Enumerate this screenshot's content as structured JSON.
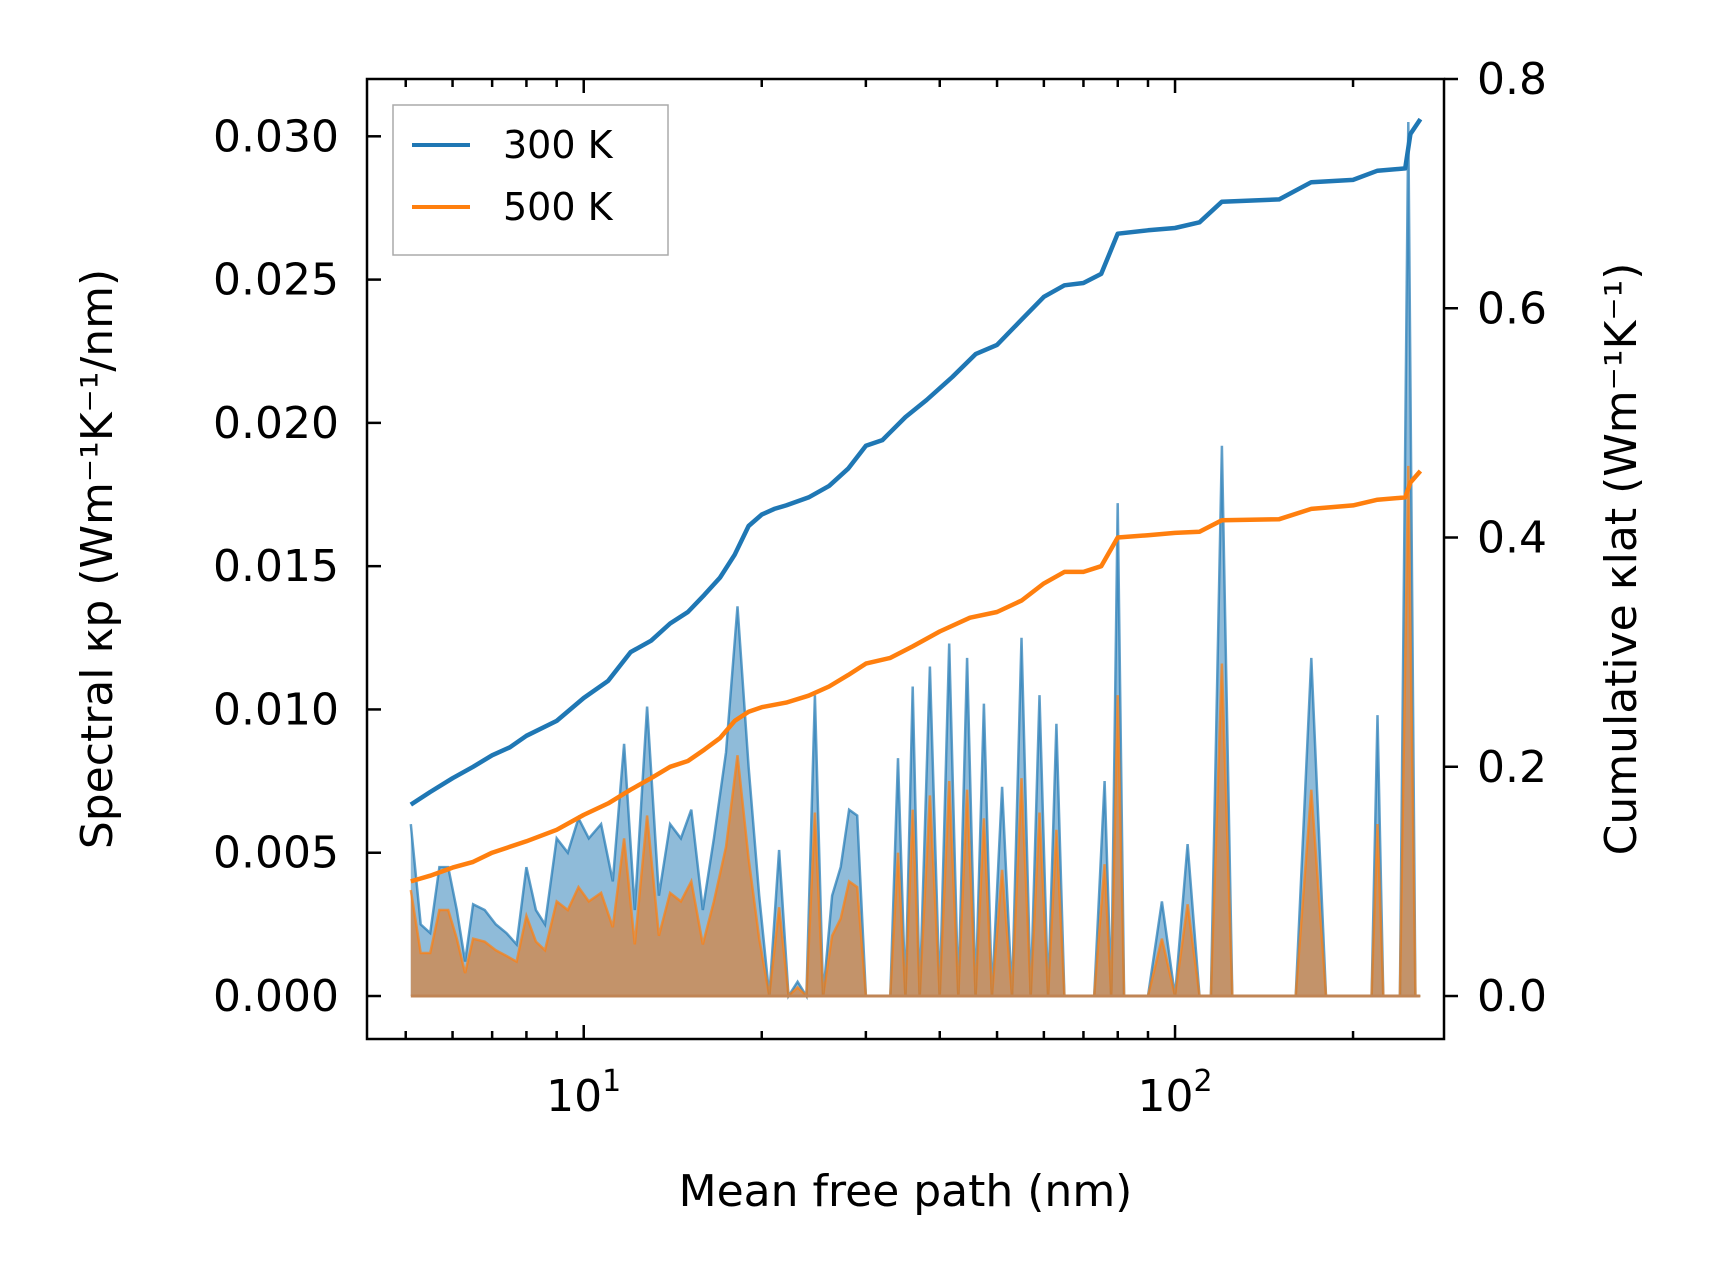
{
  "chart_data": {
    "type": "line",
    "xlabel": "Mean free path (nm)",
    "ylabel_left": "Spectral κp (Wm⁻¹K⁻¹/nm)",
    "ylabel_right": "Cumulative κlat (Wm⁻¹K⁻¹)",
    "xscale": "log",
    "xlim": [
      4.3,
      285
    ],
    "ylim_left": [
      -0.0015,
      0.032
    ],
    "ylim_right": [
      -0.0375,
      0.8
    ],
    "x_ticks": [
      {
        "value": 10,
        "base": "10",
        "exp": "1"
      },
      {
        "value": 100,
        "base": "10",
        "exp": "2"
      }
    ],
    "y_left_ticks": [
      "0.000",
      "0.005",
      "0.010",
      "0.015",
      "0.020",
      "0.025",
      "0.030"
    ],
    "y_right_ticks": [
      "0.0",
      "0.2",
      "0.4",
      "0.6",
      "0.8"
    ],
    "legend": {
      "position": "top-left",
      "entries": [
        "300 K",
        "500 K"
      ]
    },
    "colors": {
      "300K": "#1f77b4",
      "500K": "#ff7f0e",
      "fill_300K": "#1f77b4",
      "fill_500K": "#d08a4e"
    },
    "spectral_series": [
      {
        "name": "300 K",
        "points": [
          [
            5.1,
            0.006
          ],
          [
            5.3,
            0.0025
          ],
          [
            5.5,
            0.0022
          ],
          [
            5.7,
            0.0045
          ],
          [
            5.9,
            0.0045
          ],
          [
            6.1,
            0.003
          ],
          [
            6.3,
            0.0012
          ],
          [
            6.5,
            0.0032
          ],
          [
            6.8,
            0.003
          ],
          [
            7.1,
            0.0025
          ],
          [
            7.4,
            0.0022
          ],
          [
            7.7,
            0.0018
          ],
          [
            8.0,
            0.0045
          ],
          [
            8.3,
            0.003
          ],
          [
            8.6,
            0.0025
          ],
          [
            9.0,
            0.0055
          ],
          [
            9.4,
            0.005
          ],
          [
            9.8,
            0.0062
          ],
          [
            10.2,
            0.0055
          ],
          [
            10.7,
            0.006
          ],
          [
            11.2,
            0.004
          ],
          [
            11.7,
            0.0088
          ],
          [
            12.2,
            0.003
          ],
          [
            12.8,
            0.0101
          ],
          [
            13.4,
            0.0035
          ],
          [
            14.0,
            0.006
          ],
          [
            14.6,
            0.0055
          ],
          [
            15.2,
            0.0065
          ],
          [
            15.9,
            0.003
          ],
          [
            16.6,
            0.0055
          ],
          [
            17.4,
            0.0085
          ],
          [
            18.2,
            0.0136
          ],
          [
            19.0,
            0.008
          ],
          [
            19.8,
            0.0035
          ],
          [
            20.6,
            0.0
          ],
          [
            21.4,
            0.0051
          ],
          [
            22.2,
            0.0
          ],
          [
            23.0,
            0.0005
          ],
          [
            23.8,
            0.0
          ],
          [
            24.6,
            0.0105
          ],
          [
            25.4,
            0.0
          ],
          [
            26.3,
            0.0035
          ],
          [
            27.2,
            0.0045
          ],
          [
            28.1,
            0.0065
          ],
          [
            29.0,
            0.0063
          ],
          [
            30.0,
            0.0
          ],
          [
            31.0,
            0.0
          ],
          [
            32.0,
            0.0
          ],
          [
            33.0,
            0.0
          ],
          [
            34.0,
            0.0083
          ],
          [
            35.0,
            0.0
          ],
          [
            36.0,
            0.0108
          ],
          [
            37.0,
            0.0
          ],
          [
            38.5,
            0.0115
          ],
          [
            40.0,
            0.0
          ],
          [
            41.5,
            0.0123
          ],
          [
            43.0,
            0.0
          ],
          [
            44.5,
            0.0118
          ],
          [
            46.0,
            0.0
          ],
          [
            47.5,
            0.0102
          ],
          [
            49.0,
            0.0
          ],
          [
            51.0,
            0.0073
          ],
          [
            53.0,
            0.0
          ],
          [
            55.0,
            0.0125
          ],
          [
            57.0,
            0.0
          ],
          [
            59.0,
            0.0105
          ],
          [
            61.0,
            0.0
          ],
          [
            63.0,
            0.0095
          ],
          [
            65.0,
            0.0
          ],
          [
            67.0,
            0.0
          ],
          [
            70.0,
            0.0
          ],
          [
            73.0,
            0.0
          ],
          [
            76.0,
            0.0075
          ],
          [
            78.0,
            0.0
          ],
          [
            80.0,
            0.0172
          ],
          [
            82.0,
            0.0
          ],
          [
            85.0,
            0.0
          ],
          [
            90.0,
            0.0
          ],
          [
            95.0,
            0.0033
          ],
          [
            100.0,
            0.0
          ],
          [
            105.0,
            0.0053
          ],
          [
            110.0,
            0.0
          ],
          [
            115.0,
            0.0
          ],
          [
            120.0,
            0.0192
          ],
          [
            125.0,
            0.0
          ],
          [
            140.0,
            0.0
          ],
          [
            160.0,
            0.0
          ],
          [
            170.0,
            0.0118
          ],
          [
            180.0,
            0.0
          ],
          [
            200.0,
            0.0
          ],
          [
            215.0,
            0.0
          ],
          [
            220.0,
            0.0098
          ],
          [
            225.0,
            0.0
          ],
          [
            240.0,
            0.0
          ],
          [
            248.0,
            0.0305
          ],
          [
            255.0,
            0.0
          ],
          [
            260.0,
            0.0
          ]
        ]
      },
      {
        "name": "500 K",
        "points": [
          [
            5.1,
            0.0037
          ],
          [
            5.3,
            0.0015
          ],
          [
            5.5,
            0.0015
          ],
          [
            5.7,
            0.003
          ],
          [
            5.9,
            0.003
          ],
          [
            6.1,
            0.002
          ],
          [
            6.3,
            0.0008
          ],
          [
            6.5,
            0.002
          ],
          [
            6.8,
            0.0019
          ],
          [
            7.1,
            0.0016
          ],
          [
            7.4,
            0.0014
          ],
          [
            7.7,
            0.0012
          ],
          [
            8.0,
            0.0028
          ],
          [
            8.3,
            0.0019
          ],
          [
            8.6,
            0.0016
          ],
          [
            9.0,
            0.0033
          ],
          [
            9.4,
            0.003
          ],
          [
            9.8,
            0.0038
          ],
          [
            10.2,
            0.0033
          ],
          [
            10.7,
            0.0036
          ],
          [
            11.2,
            0.0024
          ],
          [
            11.7,
            0.0055
          ],
          [
            12.2,
            0.0018
          ],
          [
            12.8,
            0.0063
          ],
          [
            13.4,
            0.0021
          ],
          [
            14.0,
            0.0036
          ],
          [
            14.6,
            0.0033
          ],
          [
            15.2,
            0.004
          ],
          [
            15.9,
            0.0018
          ],
          [
            16.6,
            0.0033
          ],
          [
            17.4,
            0.0052
          ],
          [
            18.2,
            0.0084
          ],
          [
            19.0,
            0.0048
          ],
          [
            19.8,
            0.002
          ],
          [
            20.6,
            0.0
          ],
          [
            21.4,
            0.0031
          ],
          [
            22.2,
            0.0
          ],
          [
            23.0,
            0.0003
          ],
          [
            23.8,
            0.0
          ],
          [
            24.6,
            0.0064
          ],
          [
            25.4,
            0.0
          ],
          [
            26.3,
            0.0021
          ],
          [
            27.2,
            0.0027
          ],
          [
            28.1,
            0.004
          ],
          [
            29.0,
            0.0038
          ],
          [
            30.0,
            0.0
          ],
          [
            31.0,
            0.0
          ],
          [
            32.0,
            0.0
          ],
          [
            33.0,
            0.0
          ],
          [
            34.0,
            0.005
          ],
          [
            35.0,
            0.0
          ],
          [
            36.0,
            0.0065
          ],
          [
            37.0,
            0.0
          ],
          [
            38.5,
            0.007
          ],
          [
            40.0,
            0.0
          ],
          [
            41.5,
            0.0075
          ],
          [
            43.0,
            0.0
          ],
          [
            44.5,
            0.0072
          ],
          [
            46.0,
            0.0
          ],
          [
            47.5,
            0.0062
          ],
          [
            49.0,
            0.0
          ],
          [
            51.0,
            0.0044
          ],
          [
            53.0,
            0.0
          ],
          [
            55.0,
            0.0076
          ],
          [
            57.0,
            0.0
          ],
          [
            59.0,
            0.0064
          ],
          [
            61.0,
            0.0
          ],
          [
            63.0,
            0.0058
          ],
          [
            65.0,
            0.0
          ],
          [
            67.0,
            0.0
          ],
          [
            70.0,
            0.0
          ],
          [
            73.0,
            0.0
          ],
          [
            76.0,
            0.0046
          ],
          [
            78.0,
            0.0
          ],
          [
            80.0,
            0.0105
          ],
          [
            82.0,
            0.0
          ],
          [
            85.0,
            0.0
          ],
          [
            90.0,
            0.0
          ],
          [
            95.0,
            0.002
          ],
          [
            100.0,
            0.0
          ],
          [
            105.0,
            0.0032
          ],
          [
            110.0,
            0.0
          ],
          [
            115.0,
            0.0
          ],
          [
            120.0,
            0.0116
          ],
          [
            125.0,
            0.0
          ],
          [
            140.0,
            0.0
          ],
          [
            160.0,
            0.0
          ],
          [
            170.0,
            0.0072
          ],
          [
            180.0,
            0.0
          ],
          [
            200.0,
            0.0
          ],
          [
            215.0,
            0.0
          ],
          [
            220.0,
            0.006
          ],
          [
            225.0,
            0.0
          ],
          [
            240.0,
            0.0
          ],
          [
            248.0,
            0.0185
          ],
          [
            255.0,
            0.0
          ],
          [
            260.0,
            0.0
          ]
        ]
      }
    ],
    "cumulative_series": [
      {
        "name": "300 K",
        "points": [
          [
            5.1,
            0.167
          ],
          [
            5.5,
            0.178
          ],
          [
            6.0,
            0.19
          ],
          [
            6.5,
            0.2
          ],
          [
            7.0,
            0.21
          ],
          [
            7.5,
            0.217
          ],
          [
            8.0,
            0.227
          ],
          [
            9.0,
            0.24
          ],
          [
            10.0,
            0.26
          ],
          [
            11.0,
            0.275
          ],
          [
            12.0,
            0.3
          ],
          [
            13.0,
            0.31
          ],
          [
            14.0,
            0.325
          ],
          [
            15.0,
            0.335
          ],
          [
            16.0,
            0.35
          ],
          [
            17.0,
            0.365
          ],
          [
            18.0,
            0.385
          ],
          [
            19.0,
            0.41
          ],
          [
            20.0,
            0.42
          ],
          [
            21.0,
            0.425
          ],
          [
            22.0,
            0.428
          ],
          [
            24.0,
            0.435
          ],
          [
            26.0,
            0.445
          ],
          [
            28.0,
            0.46
          ],
          [
            30.0,
            0.48
          ],
          [
            32.0,
            0.485
          ],
          [
            35.0,
            0.505
          ],
          [
            38.0,
            0.52
          ],
          [
            42.0,
            0.54
          ],
          [
            46.0,
            0.56
          ],
          [
            50.0,
            0.568
          ],
          [
            55.0,
            0.59
          ],
          [
            60.0,
            0.61
          ],
          [
            65.0,
            0.62
          ],
          [
            70.0,
            0.622
          ],
          [
            75.0,
            0.63
          ],
          [
            80.0,
            0.665
          ],
          [
            90.0,
            0.668
          ],
          [
            100.0,
            0.67
          ],
          [
            110.0,
            0.675
          ],
          [
            120.0,
            0.693
          ],
          [
            150.0,
            0.695
          ],
          [
            170.0,
            0.71
          ],
          [
            200.0,
            0.712
          ],
          [
            220.0,
            0.72
          ],
          [
            245.0,
            0.722
          ],
          [
            250.0,
            0.752
          ],
          [
            260.0,
            0.765
          ]
        ]
      },
      {
        "name": "500 K",
        "points": [
          [
            5.1,
            0.1
          ],
          [
            5.5,
            0.105
          ],
          [
            6.0,
            0.112
          ],
          [
            6.5,
            0.117
          ],
          [
            7.0,
            0.125
          ],
          [
            8.0,
            0.135
          ],
          [
            9.0,
            0.145
          ],
          [
            10.0,
            0.158
          ],
          [
            11.0,
            0.168
          ],
          [
            12.0,
            0.18
          ],
          [
            13.0,
            0.19
          ],
          [
            14.0,
            0.2
          ],
          [
            15.0,
            0.205
          ],
          [
            16.0,
            0.215
          ],
          [
            17.0,
            0.225
          ],
          [
            18.0,
            0.24
          ],
          [
            19.0,
            0.248
          ],
          [
            20.0,
            0.252
          ],
          [
            22.0,
            0.256
          ],
          [
            24.0,
            0.262
          ],
          [
            26.0,
            0.27
          ],
          [
            28.0,
            0.28
          ],
          [
            30.0,
            0.29
          ],
          [
            33.0,
            0.295
          ],
          [
            36.0,
            0.305
          ],
          [
            40.0,
            0.318
          ],
          [
            45.0,
            0.33
          ],
          [
            50.0,
            0.335
          ],
          [
            55.0,
            0.345
          ],
          [
            60.0,
            0.36
          ],
          [
            65.0,
            0.37
          ],
          [
            70.0,
            0.37
          ],
          [
            75.0,
            0.375
          ],
          [
            80.0,
            0.4
          ],
          [
            90.0,
            0.402
          ],
          [
            100.0,
            0.404
          ],
          [
            110.0,
            0.405
          ],
          [
            120.0,
            0.415
          ],
          [
            150.0,
            0.416
          ],
          [
            170.0,
            0.425
          ],
          [
            200.0,
            0.428
          ],
          [
            220.0,
            0.433
          ],
          [
            245.0,
            0.435
          ],
          [
            250.0,
            0.448
          ],
          [
            260.0,
            0.458
          ]
        ]
      }
    ]
  }
}
